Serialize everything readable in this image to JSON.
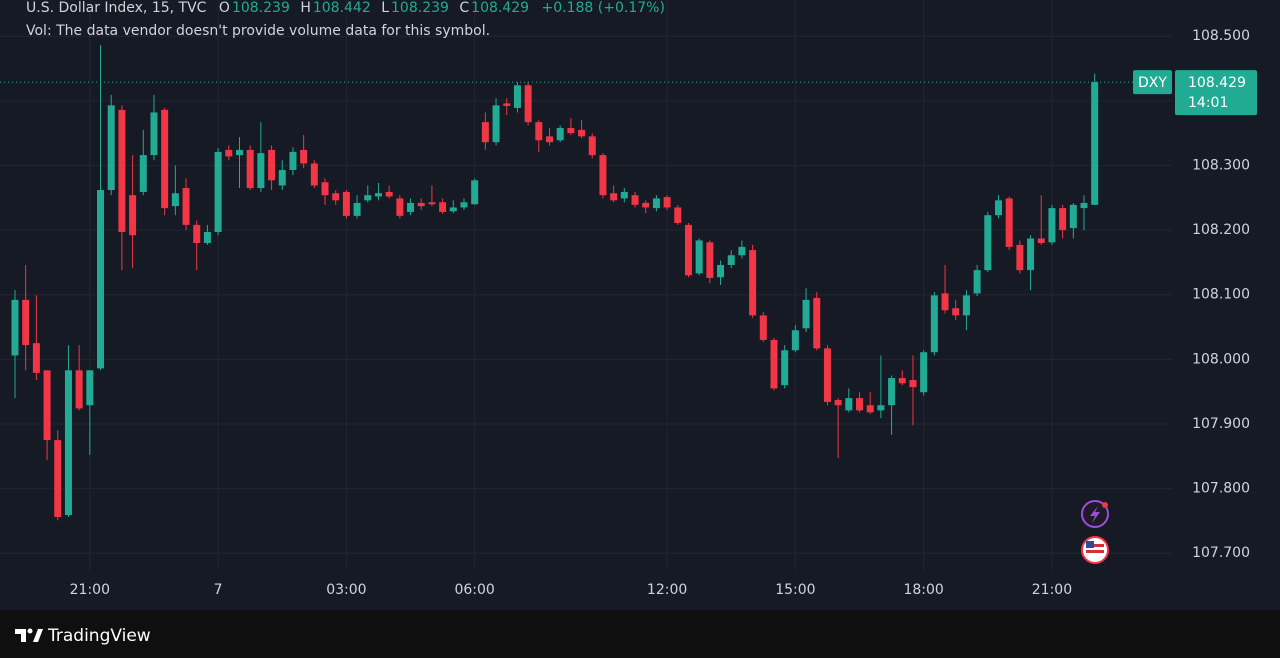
{
  "chart_data": {
    "type": "candlestick",
    "title": "U.S. Dollar Index, 15, TVC",
    "ohlc_labels": [
      "O",
      "H",
      "L",
      "C"
    ],
    "change": "+0.188 (+0.17%)",
    "volume_note": "Vol: The data vendor doesn't provide volume data for this symbol.",
    "symbol_tag": "DXY",
    "countdown": "14:01",
    "up_color": "#22ab94",
    "down_color": "#f23645",
    "grid": true,
    "ylim": [
      107.674,
      108.556
    ],
    "yticks": [
      {
        "value": 107.7,
        "label": "107.700"
      },
      {
        "value": 107.8,
        "label": "107.800"
      },
      {
        "value": 107.9,
        "label": "107.900"
      },
      {
        "value": 108.0,
        "label": "108.000"
      },
      {
        "value": 108.1,
        "label": "108.100"
      },
      {
        "value": 108.2,
        "label": "108.200"
      },
      {
        "value": 108.3,
        "label": "108.300"
      },
      {
        "value": 108.4,
        "label": "108.400"
      },
      {
        "value": 108.5,
        "label": "108.500"
      }
    ],
    "categories": [
      null,
      null,
      null,
      null,
      null,
      null,
      null,
      "21:00",
      null,
      null,
      null,
      null,
      null,
      null,
      null,
      null,
      null,
      null,
      null,
      "7",
      null,
      null,
      null,
      null,
      null,
      null,
      null,
      null,
      null,
      null,
      null,
      "03:00",
      null,
      null,
      null,
      null,
      null,
      null,
      null,
      null,
      null,
      null,
      null,
      "06:00",
      null,
      null,
      null,
      null,
      null,
      null,
      null,
      null,
      null,
      null,
      null,
      null,
      null,
      null,
      null,
      null,
      null,
      "12:00",
      null,
      null,
      null,
      null,
      null,
      null,
      null,
      null,
      null,
      null,
      null,
      "15:00",
      null,
      null,
      null,
      null,
      null,
      null,
      null,
      null,
      null,
      null,
      null,
      "18:00",
      null,
      null,
      null,
      null,
      null,
      null,
      null,
      null,
      null,
      null,
      null,
      "21:00",
      null,
      null,
      null,
      null
    ],
    "open": [
      108.006,
      108.092,
      108.025,
      107.983,
      107.875,
      107.759,
      107.983,
      107.929,
      107.986,
      108.262,
      108.386,
      108.254,
      108.259,
      108.316,
      108.386,
      108.237,
      108.265,
      108.208,
      108.18,
      108.197,
      108.324,
      108.316,
      108.324,
      108.265,
      108.324,
      108.269,
      108.293,
      108.324,
      108.303,
      108.274,
      108.257,
      108.259,
      108.222,
      108.246,
      108.252,
      108.259,
      108.249,
      108.228,
      108.242,
      108.243,
      108.243,
      108.229,
      108.235,
      108.24,
      108.367,
      108.336,
      108.396,
      108.389,
      108.424,
      108.367,
      108.345,
      108.339,
      108.358,
      108.355,
      108.345,
      108.316,
      108.257,
      108.249,
      108.254,
      108.242,
      108.234,
      108.251,
      108.235,
      108.208,
      108.133,
      108.181,
      108.127,
      108.146,
      108.161,
      108.169,
      108.068,
      108.03,
      107.96,
      108.014,
      108.048,
      108.095,
      108.017,
      107.937,
      107.921,
      107.94,
      107.929,
      107.921,
      107.929,
      107.971,
      107.968,
      107.949,
      108.011,
      108.102,
      108.079,
      108.068,
      108.102,
      108.138,
      108.223,
      108.249,
      108.177,
      108.138,
      108.187,
      108.181,
      108.234,
      108.203,
      108.234,
      108.239
    ],
    "high": [
      108.107,
      108.146,
      108.099,
      107.983,
      107.89,
      108.022,
      108.022,
      107.983,
      108.486,
      108.409,
      108.393,
      108.316,
      108.355,
      108.409,
      108.389,
      108.3,
      108.28,
      108.215,
      108.208,
      108.327,
      108.331,
      108.344,
      108.331,
      108.367,
      108.331,
      108.308,
      108.328,
      108.347,
      108.308,
      108.28,
      108.262,
      108.262,
      108.254,
      108.269,
      108.273,
      108.269,
      108.254,
      108.249,
      108.249,
      108.269,
      108.249,
      108.246,
      108.249,
      108.28,
      108.382,
      108.404,
      108.404,
      108.429,
      108.429,
      108.37,
      108.358,
      108.362,
      108.373,
      108.37,
      108.35,
      108.319,
      108.269,
      108.265,
      108.259,
      108.246,
      108.254,
      108.254,
      108.239,
      108.211,
      108.187,
      108.184,
      108.153,
      108.169,
      108.184,
      108.177,
      108.073,
      108.033,
      108.022,
      108.053,
      108.11,
      108.104,
      108.022,
      107.94,
      107.955,
      107.949,
      107.949,
      108.006,
      107.975,
      107.983,
      108.006,
      108.014,
      108.104,
      108.146,
      108.092,
      108.107,
      108.146,
      108.228,
      108.254,
      108.252,
      108.184,
      108.192,
      108.254,
      108.239,
      108.239,
      108.242,
      108.254,
      108.442
    ],
    "low": [
      107.94,
      107.983,
      107.968,
      107.844,
      107.751,
      107.756,
      107.921,
      107.852,
      107.983,
      108.254,
      108.138,
      108.141,
      108.254,
      108.308,
      108.223,
      108.223,
      108.2,
      108.138,
      108.177,
      108.192,
      108.308,
      108.265,
      108.262,
      108.259,
      108.262,
      108.262,
      108.285,
      108.296,
      108.265,
      108.239,
      108.239,
      108.218,
      108.218,
      108.243,
      108.246,
      108.249,
      108.218,
      108.223,
      108.231,
      108.237,
      108.225,
      108.226,
      108.231,
      108.239,
      108.324,
      108.331,
      108.378,
      108.382,
      108.362,
      108.321,
      108.331,
      108.336,
      108.347,
      108.342,
      108.311,
      108.249,
      108.243,
      108.243,
      108.235,
      108.226,
      108.229,
      108.231,
      108.208,
      108.127,
      108.13,
      108.118,
      108.115,
      108.141,
      108.156,
      108.064,
      108.027,
      107.952,
      107.955,
      108.011,
      108.042,
      108.014,
      107.929,
      107.847,
      107.918,
      107.918,
      107.915,
      107.909,
      107.883,
      107.96,
      107.898,
      107.944,
      108.006,
      108.071,
      108.061,
      108.045,
      108.098,
      108.135,
      108.218,
      108.169,
      108.133,
      108.107,
      108.177,
      108.177,
      108.187,
      108.187,
      108.2,
      108.239
    ],
    "close": [
      108.092,
      108.022,
      107.979,
      107.875,
      107.756,
      107.983,
      107.924,
      107.983,
      108.262,
      108.393,
      108.197,
      108.192,
      108.316,
      108.382,
      108.234,
      108.257,
      108.208,
      108.18,
      108.197,
      108.321,
      108.314,
      108.324,
      108.265,
      108.319,
      108.277,
      108.293,
      108.321,
      108.303,
      108.269,
      108.254,
      108.246,
      108.222,
      108.242,
      108.254,
      108.257,
      108.252,
      108.222,
      108.242,
      108.237,
      108.24,
      108.228,
      108.235,
      108.243,
      108.277,
      108.336,
      108.393,
      108.392,
      108.424,
      108.367,
      108.339,
      108.336,
      108.358,
      108.35,
      108.345,
      108.316,
      108.254,
      108.246,
      108.259,
      108.239,
      108.235,
      108.249,
      108.235,
      108.211,
      108.13,
      108.184,
      108.126,
      108.146,
      108.161,
      108.174,
      108.068,
      108.03,
      107.955,
      108.014,
      108.045,
      108.092,
      108.017,
      107.934,
      107.929,
      107.94,
      107.921,
      107.918,
      107.929,
      107.971,
      107.963,
      107.957,
      108.011,
      108.099,
      108.076,
      108.068,
      108.099,
      108.138,
      108.223,
      108.246,
      108.174,
      108.138,
      108.187,
      108.18,
      108.234,
      108.2,
      108.239,
      108.242,
      108.429
    ]
  },
  "footer": {
    "brand": "TradingView"
  }
}
